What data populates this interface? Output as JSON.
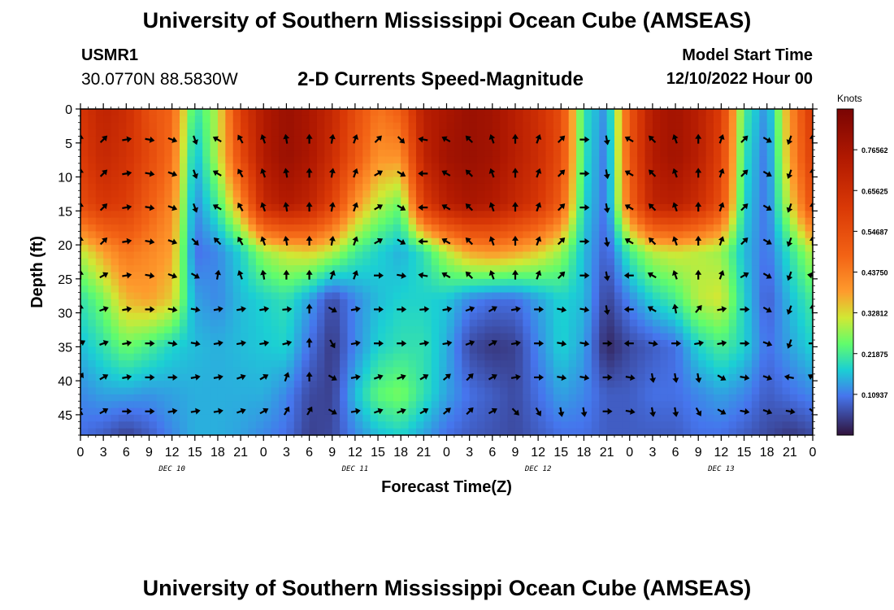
{
  "header": {
    "title": "University of Southern Mississippi Ocean Cube (AMSEAS)",
    "station_id": "USMR1",
    "station_coords": "30.0770N  88.5830W",
    "model_start_label": "Model Start Time",
    "model_start_value": "12/10/2022 Hour 00"
  },
  "footer": {
    "title": "University of Southern Mississippi Ocean Cube (AMSEAS)"
  },
  "chart_data": {
    "type": "heatmap",
    "title": "2-D Currents Speed-Magnitude",
    "xlabel": "Forecast Time(Z)",
    "ylabel": "Depth (ft)",
    "x_hours_range": [
      0,
      96
    ],
    "x_tick_labels": [
      "0",
      "3",
      "6",
      "9",
      "12",
      "15",
      "18",
      "21",
      "0",
      "3",
      "6",
      "9",
      "12",
      "15",
      "18",
      "21",
      "0",
      "3",
      "6",
      "9",
      "12",
      "15",
      "18",
      "21",
      "0",
      "3",
      "6",
      "9",
      "12",
      "15",
      "18",
      "21",
      "0"
    ],
    "date_labels": [
      {
        "label": "DEC 10",
        "hour": 12
      },
      {
        "label": "DEC 11",
        "hour": 36
      },
      {
        "label": "DEC 12",
        "hour": 60
      },
      {
        "label": "DEC 13",
        "hour": 84
      }
    ],
    "ylim": [
      0,
      48
    ],
    "y_ticks": [
      0,
      5,
      10,
      15,
      20,
      25,
      30,
      35,
      40,
      45
    ],
    "colorbar": {
      "label": "Knots",
      "range": [
        0,
        0.875
      ],
      "tick_values": [
        0.76562,
        0.65625,
        0.54687,
        0.4375,
        0.32812,
        0.21875,
        0.10937
      ],
      "tick_labels": [
        "0.76562",
        "0.65625",
        "0.54687",
        "0.43750",
        "0.32812",
        "0.21875",
        "0.10937"
      ]
    },
    "speed_grid": {
      "hours": [
        0,
        3,
        6,
        9,
        12,
        15,
        18,
        21,
        24,
        27,
        30,
        33,
        36,
        39,
        42,
        45,
        48,
        51,
        54,
        57,
        60,
        63,
        66,
        69,
        72,
        75,
        78,
        81,
        84,
        87,
        90,
        93,
        96
      ],
      "depths_ft": [
        0,
        7,
        14,
        21,
        28,
        35,
        42,
        48
      ],
      "values_knots": [
        [
          0.62,
          0.7,
          0.66,
          0.54,
          0.48,
          0.2,
          0.3,
          0.6,
          0.74,
          0.8,
          0.76,
          0.68,
          0.55,
          0.45,
          0.5,
          0.72,
          0.76,
          0.8,
          0.78,
          0.72,
          0.65,
          0.55,
          0.2,
          0.12,
          0.52,
          0.74,
          0.78,
          0.72,
          0.6,
          0.22,
          0.12,
          0.4,
          0.62
        ],
        [
          0.6,
          0.68,
          0.64,
          0.56,
          0.46,
          0.15,
          0.3,
          0.55,
          0.74,
          0.8,
          0.76,
          0.66,
          0.52,
          0.4,
          0.4,
          0.7,
          0.78,
          0.8,
          0.78,
          0.72,
          0.66,
          0.55,
          0.2,
          0.1,
          0.52,
          0.74,
          0.78,
          0.72,
          0.58,
          0.2,
          0.1,
          0.38,
          0.6
        ],
        [
          0.55,
          0.62,
          0.6,
          0.5,
          0.42,
          0.12,
          0.22,
          0.4,
          0.68,
          0.74,
          0.7,
          0.58,
          0.4,
          0.3,
          0.25,
          0.6,
          0.72,
          0.76,
          0.74,
          0.68,
          0.62,
          0.5,
          0.18,
          0.1,
          0.48,
          0.7,
          0.72,
          0.66,
          0.54,
          0.18,
          0.1,
          0.32,
          0.55
        ],
        [
          0.3,
          0.38,
          0.45,
          0.42,
          0.38,
          0.1,
          0.12,
          0.18,
          0.28,
          0.32,
          0.34,
          0.3,
          0.22,
          0.18,
          0.15,
          0.2,
          0.3,
          0.38,
          0.4,
          0.38,
          0.34,
          0.28,
          0.16,
          0.08,
          0.22,
          0.3,
          0.32,
          0.3,
          0.28,
          0.16,
          0.1,
          0.2,
          0.3
        ],
        [
          0.2,
          0.26,
          0.36,
          0.38,
          0.34,
          0.14,
          0.12,
          0.16,
          0.18,
          0.2,
          0.14,
          0.06,
          0.12,
          0.16,
          0.18,
          0.18,
          0.17,
          0.12,
          0.1,
          0.1,
          0.14,
          0.18,
          0.16,
          0.05,
          0.12,
          0.18,
          0.22,
          0.3,
          0.32,
          0.18,
          0.08,
          0.16,
          0.22
        ],
        [
          0.16,
          0.2,
          0.25,
          0.22,
          0.18,
          0.16,
          0.15,
          0.16,
          0.17,
          0.18,
          0.1,
          0.04,
          0.12,
          0.18,
          0.2,
          0.2,
          0.15,
          0.06,
          0.04,
          0.05,
          0.12,
          0.18,
          0.14,
          0.02,
          0.06,
          0.08,
          0.1,
          0.18,
          0.22,
          0.18,
          0.1,
          0.14,
          0.18
        ],
        [
          0.12,
          0.14,
          0.14,
          0.13,
          0.14,
          0.15,
          0.15,
          0.15,
          0.15,
          0.12,
          0.06,
          0.05,
          0.16,
          0.24,
          0.26,
          0.2,
          0.14,
          0.1,
          0.08,
          0.06,
          0.1,
          0.14,
          0.12,
          0.08,
          0.08,
          0.1,
          0.1,
          0.12,
          0.14,
          0.12,
          0.08,
          0.1,
          0.12
        ],
        [
          0.1,
          0.08,
          0.05,
          0.08,
          0.12,
          0.15,
          0.15,
          0.14,
          0.12,
          0.1,
          0.05,
          0.06,
          0.12,
          0.16,
          0.18,
          0.14,
          0.1,
          0.08,
          0.07,
          0.06,
          0.08,
          0.1,
          0.1,
          0.08,
          0.08,
          0.08,
          0.08,
          0.1,
          0.1,
          0.08,
          0.06,
          0.04,
          0.06
        ]
      ]
    },
    "vector_grid": {
      "hours": [
        0,
        3,
        6,
        9,
        12,
        15,
        18,
        21,
        24,
        27,
        30,
        33,
        36,
        39,
        42,
        45,
        48,
        51,
        54,
        57,
        60,
        63,
        66,
        69,
        72,
        75,
        78,
        81,
        84,
        87,
        90,
        93,
        96
      ],
      "depths_ft": [
        4.5,
        9.5,
        14.5,
        19.5,
        24.5,
        29.5,
        34.5,
        39.5,
        44.5
      ],
      "directions_deg": [
        [
          0,
          45,
          80,
          100,
          110,
          160,
          300,
          330,
          340,
          350,
          0,
          10,
          20,
          45,
          135,
          280,
          300,
          315,
          340,
          0,
          20,
          45,
          90,
          170,
          300,
          315,
          340,
          0,
          20,
          45,
          120,
          200,
          0
        ],
        [
          0,
          45,
          80,
          100,
          110,
          160,
          300,
          330,
          340,
          350,
          0,
          10,
          20,
          60,
          120,
          270,
          300,
          315,
          340,
          0,
          20,
          45,
          90,
          170,
          300,
          315,
          340,
          0,
          20,
          45,
          120,
          200,
          0
        ],
        [
          0,
          45,
          80,
          100,
          110,
          160,
          300,
          330,
          340,
          350,
          0,
          10,
          20,
          60,
          120,
          270,
          300,
          315,
          340,
          0,
          20,
          45,
          90,
          170,
          300,
          315,
          340,
          0,
          20,
          45,
          120,
          200,
          0
        ],
        [
          0,
          45,
          80,
          100,
          110,
          135,
          315,
          330,
          340,
          350,
          0,
          10,
          20,
          60,
          120,
          270,
          300,
          315,
          340,
          0,
          20,
          45,
          90,
          170,
          300,
          315,
          340,
          0,
          20,
          45,
          120,
          200,
          0
        ],
        [
          0,
          60,
          80,
          100,
          110,
          120,
          10,
          340,
          350,
          0,
          0,
          20,
          20,
          90,
          100,
          280,
          300,
          315,
          340,
          0,
          20,
          45,
          90,
          170,
          270,
          300,
          340,
          0,
          20,
          60,
          120,
          200,
          280
        ],
        [
          0,
          70,
          80,
          90,
          100,
          100,
          80,
          80,
          80,
          85,
          0,
          120,
          80,
          90,
          90,
          85,
          80,
          70,
          60,
          80,
          90,
          100,
          100,
          170,
          270,
          300,
          350,
          40,
          80,
          90,
          120,
          200,
          0
        ],
        [
          60,
          70,
          80,
          90,
          100,
          100,
          80,
          80,
          80,
          75,
          0,
          150,
          80,
          90,
          90,
          80,
          80,
          70,
          60,
          80,
          90,
          100,
          100,
          90,
          270,
          100,
          90,
          80,
          80,
          90,
          110,
          200,
          90
        ],
        [
          30,
          60,
          80,
          90,
          90,
          80,
          80,
          70,
          60,
          20,
          0,
          120,
          80,
          70,
          70,
          60,
          50,
          45,
          60,
          80,
          90,
          100,
          100,
          90,
          100,
          170,
          170,
          170,
          120,
          100,
          110,
          280,
          300
        ],
        [
          330,
          60,
          90,
          90,
          80,
          80,
          80,
          70,
          60,
          30,
          30,
          120,
          80,
          70,
          70,
          60,
          50,
          45,
          60,
          135,
          150,
          170,
          170,
          90,
          100,
          170,
          170,
          150,
          120,
          100,
          110,
          100,
          130
        ]
      ]
    }
  }
}
